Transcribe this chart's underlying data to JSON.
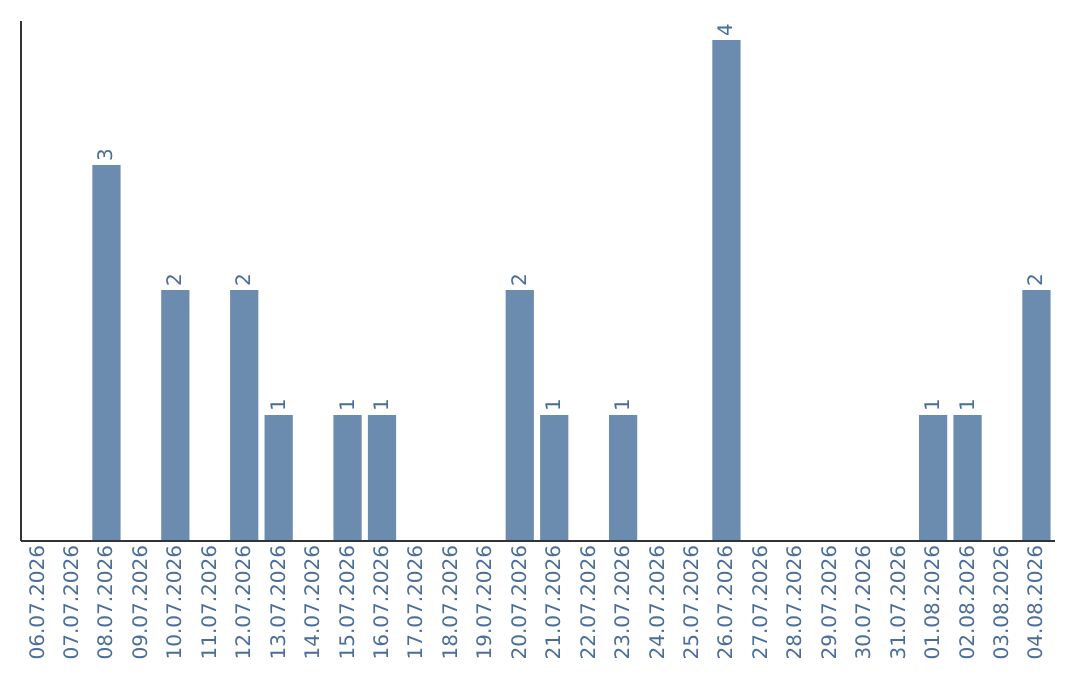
{
  "chart_data": {
    "type": "bar",
    "categories": [
      "06.07.2026",
      "07.07.2026",
      "08.07.2026",
      "09.07.2026",
      "10.07.2026",
      "11.07.2026",
      "12.07.2026",
      "13.07.2026",
      "14.07.2026",
      "15.07.2026",
      "16.07.2026",
      "17.07.2026",
      "18.07.2026",
      "19.07.2026",
      "20.07.2026",
      "21.07.2026",
      "22.07.2026",
      "23.07.2026",
      "24.07.2026",
      "25.07.2026",
      "26.07.2026",
      "27.07.2026",
      "28.07.2026",
      "29.07.2026",
      "30.07.2026",
      "31.07.2026",
      "01.08.2026",
      "02.08.2026",
      "03.08.2026",
      "04.08.2026"
    ],
    "values": [
      0,
      0,
      3,
      0,
      2,
      0,
      2,
      1,
      0,
      1,
      1,
      0,
      0,
      0,
      2,
      1,
      0,
      1,
      0,
      0,
      4,
      0,
      0,
      0,
      0,
      0,
      1,
      1,
      0,
      2
    ],
    "value_labels": [
      null,
      null,
      "3",
      null,
      "2",
      null,
      "2",
      "1",
      null,
      "1",
      "1",
      null,
      null,
      null,
      "2",
      "1",
      null,
      "1",
      null,
      null,
      "4",
      null,
      null,
      null,
      null,
      null,
      "1",
      "1",
      null,
      "2"
    ],
    "color": "#6b8cae",
    "tick_labels": "x",
    "grid": false
  }
}
